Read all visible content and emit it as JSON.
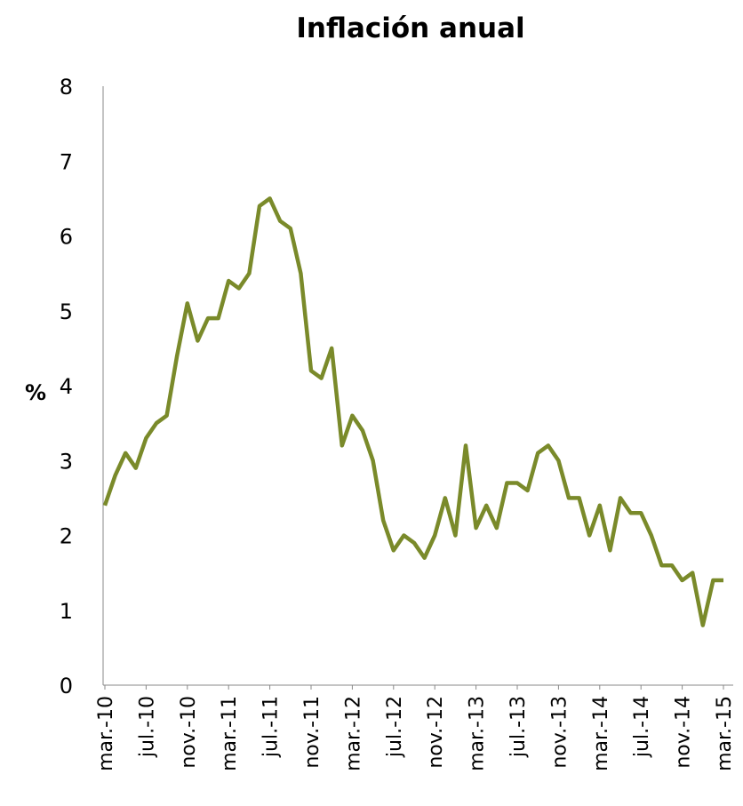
{
  "chart_data": {
    "type": "line",
    "title": "Inflación anual",
    "y_label": "%",
    "categories": [
      "mar.-10",
      null,
      null,
      null,
      "jul.-10",
      null,
      null,
      null,
      "nov.-10",
      null,
      null,
      null,
      "mar.-11",
      null,
      null,
      null,
      "jul.-11",
      null,
      null,
      null,
      "nov.-11",
      null,
      null,
      null,
      "mar.-12",
      null,
      null,
      null,
      "jul.-12",
      null,
      null,
      null,
      "nov.-12",
      null,
      null,
      null,
      "mar.-13",
      null,
      null,
      null,
      "jul.-13",
      null,
      null,
      null,
      "nov.-13",
      null,
      null,
      null,
      "mar.-14",
      null,
      null,
      null,
      "jul.-14",
      null,
      null,
      null,
      "nov.-14",
      null,
      null,
      null,
      "mar.-15"
    ],
    "series": [
      {
        "name": "Inflación anual",
        "color": "#7a8a2a",
        "values": [
          2.4,
          2.8,
          3.1,
          2.9,
          3.3,
          3.5,
          3.6,
          4.4,
          5.1,
          4.6,
          4.9,
          4.9,
          5.4,
          5.3,
          5.5,
          6.4,
          6.5,
          6.2,
          6.1,
          5.5,
          4.2,
          4.1,
          4.5,
          3.2,
          3.6,
          3.4,
          3.0,
          2.2,
          1.8,
          2.0,
          1.9,
          1.7,
          2.0,
          2.5,
          2.0,
          3.2,
          2.1,
          2.4,
          2.1,
          2.7,
          2.7,
          2.6,
          3.1,
          3.2,
          3.0,
          2.5,
          2.5,
          2.0,
          2.4,
          1.8,
          2.5,
          2.3,
          2.3,
          2.0,
          1.6,
          1.6,
          1.4,
          1.5,
          0.8,
          1.4,
          1.4
        ]
      }
    ],
    "ylim": [
      0,
      8
    ],
    "yticks": [
      0,
      1,
      2,
      3,
      4,
      5,
      6,
      7,
      8
    ],
    "grid": false,
    "legend": false
  }
}
